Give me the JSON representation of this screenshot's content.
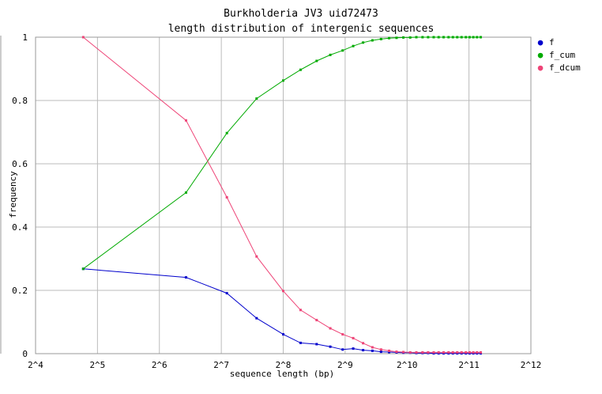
{
  "chart_data": {
    "type": "line",
    "title": "Burkholderia JV3 uid72473",
    "subtitle": "length distribution of intergenic sequences",
    "xlabel": "sequence length (bp)",
    "ylabel": "frequency",
    "x_scale": "log2",
    "xlim": [
      4,
      12
    ],
    "ylim": [
      0,
      1
    ],
    "x_ticks": [
      {
        "value": 4,
        "label": "2^4"
      },
      {
        "value": 5,
        "label": "2^5"
      },
      {
        "value": 6,
        "label": "2^6"
      },
      {
        "value": 7,
        "label": "2^7"
      },
      {
        "value": 8,
        "label": "2^8"
      },
      {
        "value": 9,
        "label": "2^9"
      },
      {
        "value": 10,
        "label": "2^10"
      },
      {
        "value": 11,
        "label": "2^11"
      },
      {
        "value": 12,
        "label": "2^12"
      }
    ],
    "y_ticks": [
      {
        "value": 0,
        "label": "0"
      },
      {
        "value": 0.2,
        "label": "0.2"
      },
      {
        "value": 0.4,
        "label": "0.4"
      },
      {
        "value": 0.6,
        "label": "0.6"
      },
      {
        "value": 0.8,
        "label": "0.8"
      },
      {
        "value": 1,
        "label": "1"
      }
    ],
    "grid": true,
    "legend_position": "right",
    "x": [
      4.77,
      6.43,
      7.09,
      7.57,
      8.0,
      8.28,
      8.54,
      8.76,
      8.96,
      9.13,
      9.29,
      9.44,
      9.58,
      9.71,
      9.83,
      9.94,
      10.05,
      10.15,
      10.25,
      10.34,
      10.43,
      10.51,
      10.59,
      10.67,
      10.74,
      10.81,
      10.88,
      10.95,
      11.01,
      11.07,
      11.13,
      11.19
    ],
    "series": [
      {
        "name": "f",
        "color": "#0000cc",
        "values": [
          0.268,
          0.241,
          0.191,
          0.112,
          0.061,
          0.034,
          0.03,
          0.022,
          0.013,
          0.016,
          0.011,
          0.009,
          0.006,
          0.005,
          0.004,
          0.003,
          0.003,
          0.002,
          0.002,
          0.002,
          0.001,
          0.001,
          0.001,
          0.001,
          0.001,
          0.001,
          0.001,
          0.001,
          0.001,
          0.001,
          0.001,
          0.001
        ]
      },
      {
        "name": "f_cum",
        "color": "#00aa00",
        "values": [
          0.268,
          0.509,
          0.697,
          0.806,
          0.863,
          0.897,
          0.925,
          0.944,
          0.958,
          0.972,
          0.983,
          0.99,
          0.994,
          0.997,
          0.998,
          0.999,
          0.999,
          1.0,
          1.0,
          1.0,
          1.0,
          1.0,
          1.0,
          1.0,
          1.0,
          1.0,
          1.0,
          1.0,
          1.0,
          1.0,
          1.0,
          1.0
        ]
      },
      {
        "name": "f_dcum",
        "color": "#ee4477",
        "values": [
          1.0,
          0.737,
          0.494,
          0.307,
          0.198,
          0.138,
          0.106,
          0.08,
          0.061,
          0.049,
          0.033,
          0.02,
          0.013,
          0.009,
          0.006,
          0.005,
          0.004,
          0.004,
          0.004,
          0.004,
          0.004,
          0.004,
          0.004,
          0.004,
          0.004,
          0.004,
          0.004,
          0.004,
          0.004,
          0.004,
          0.004,
          0.004
        ]
      }
    ]
  }
}
